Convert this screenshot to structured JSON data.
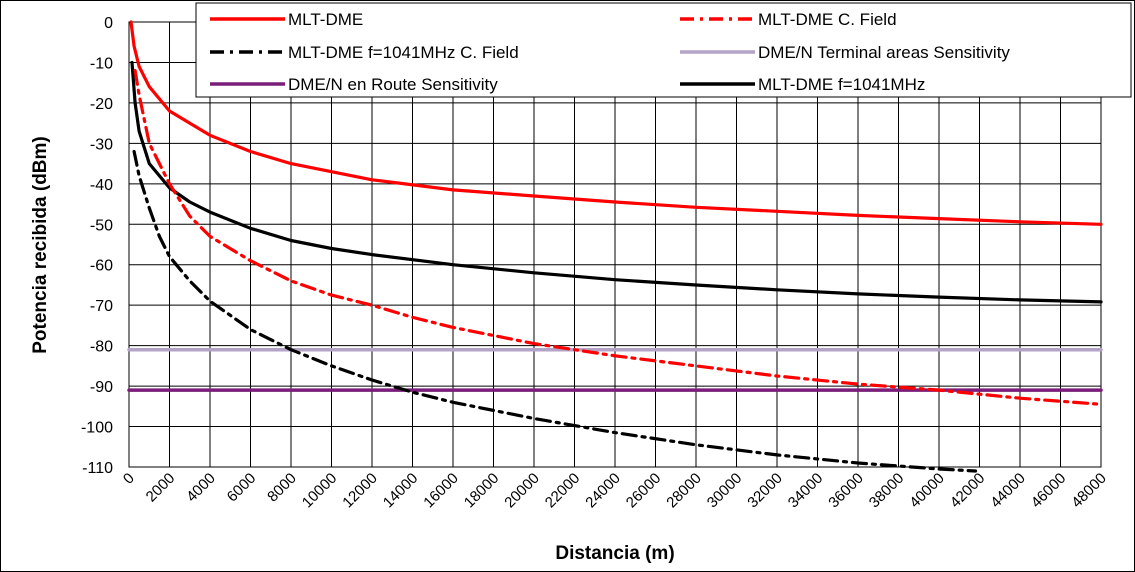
{
  "chart_data": {
    "type": "line",
    "xlabel": "Distancia (m)",
    "ylabel": "Potencia recibida (dBm)",
    "xlim": [
      0,
      48000
    ],
    "ylim": [
      -110,
      0
    ],
    "x_ticks": [
      0,
      2000,
      4000,
      6000,
      8000,
      10000,
      12000,
      14000,
      16000,
      18000,
      20000,
      22000,
      24000,
      26000,
      28000,
      30000,
      32000,
      34000,
      36000,
      38000,
      40000,
      42000,
      44000,
      46000,
      48000
    ],
    "y_ticks": [
      0,
      -10,
      -20,
      -30,
      -40,
      -50,
      -60,
      -70,
      -80,
      -90,
      -100,
      -110
    ],
    "grid": true,
    "legend_position": "top",
    "series": [
      {
        "name": "MLT-DME",
        "color": "#ff0000",
        "dash": "solid",
        "x": [
          100,
          250,
          500,
          1000,
          2000,
          4000,
          6000,
          8000,
          10000,
          12000,
          16000,
          20000,
          24000,
          28000,
          32000,
          36000,
          40000,
          44000,
          48000
        ],
        "y": [
          0,
          -6,
          -11,
          -16,
          -22,
          -28,
          -32,
          -35,
          -37,
          -39,
          -41.5,
          -43,
          -44.5,
          -45.8,
          -46.8,
          -47.8,
          -48.6,
          -49.4,
          -50
        ]
      },
      {
        "name": "MLT-DME C. Field",
        "color": "#ff0000",
        "dash": "dashdot",
        "x": [
          300,
          500,
          1000,
          2000,
          3000,
          4000,
          6000,
          8000,
          10000,
          12000,
          14000,
          16000,
          18000,
          20000,
          24000,
          28000,
          32000,
          36000,
          40000,
          44000,
          48000
        ],
        "y": [
          -12,
          -18,
          -30,
          -40,
          -48,
          -53,
          -59,
          -64,
          -67.5,
          -70,
          -73,
          -75.5,
          -77.5,
          -79.5,
          -82.5,
          -85,
          -87.5,
          -89.5,
          -91,
          -93,
          -94.5
        ]
      },
      {
        "name": "MLT-DME f=1041MHz C. Field",
        "color": "#000000",
        "dash": "dashdot",
        "x": [
          250,
          500,
          1000,
          1500,
          2000,
          3000,
          4000,
          6000,
          8000,
          10000,
          12000,
          14000,
          16000,
          20000,
          24000,
          28000,
          32000,
          36000,
          40000,
          41800
        ],
        "y": [
          -32,
          -38,
          -46,
          -53,
          -58,
          -64,
          -69,
          -76,
          -81,
          -85,
          -88.5,
          -91.5,
          -94,
          -98,
          -101.5,
          -104.5,
          -107,
          -109,
          -110.5,
          -111
        ]
      },
      {
        "name": "DME/N Terminal areas Sensitivity",
        "color": "#b3a3c7",
        "dash": "solid",
        "x": [
          0,
          48000
        ],
        "y": [
          -81,
          -81
        ]
      },
      {
        "name": "DME/N en Route Sensitivity",
        "color": "#7a1e7a",
        "dash": "solid",
        "x": [
          0,
          48000
        ],
        "y": [
          -91,
          -91
        ]
      },
      {
        "name": "MLT-DME f=1041MHz",
        "color": "#000000",
        "dash": "solid",
        "x": [
          150,
          300,
          500,
          1000,
          2000,
          3000,
          4000,
          6000,
          8000,
          10000,
          12000,
          16000,
          20000,
          24000,
          28000,
          32000,
          36000,
          40000,
          44000,
          48000
        ],
        "y": [
          -10,
          -20,
          -27,
          -35,
          -41,
          -44.5,
          -47,
          -51,
          -54,
          -56,
          -57.5,
          -60,
          -62,
          -63.7,
          -65,
          -66.2,
          -67.2,
          -68,
          -68.7,
          -69.2
        ]
      }
    ]
  }
}
